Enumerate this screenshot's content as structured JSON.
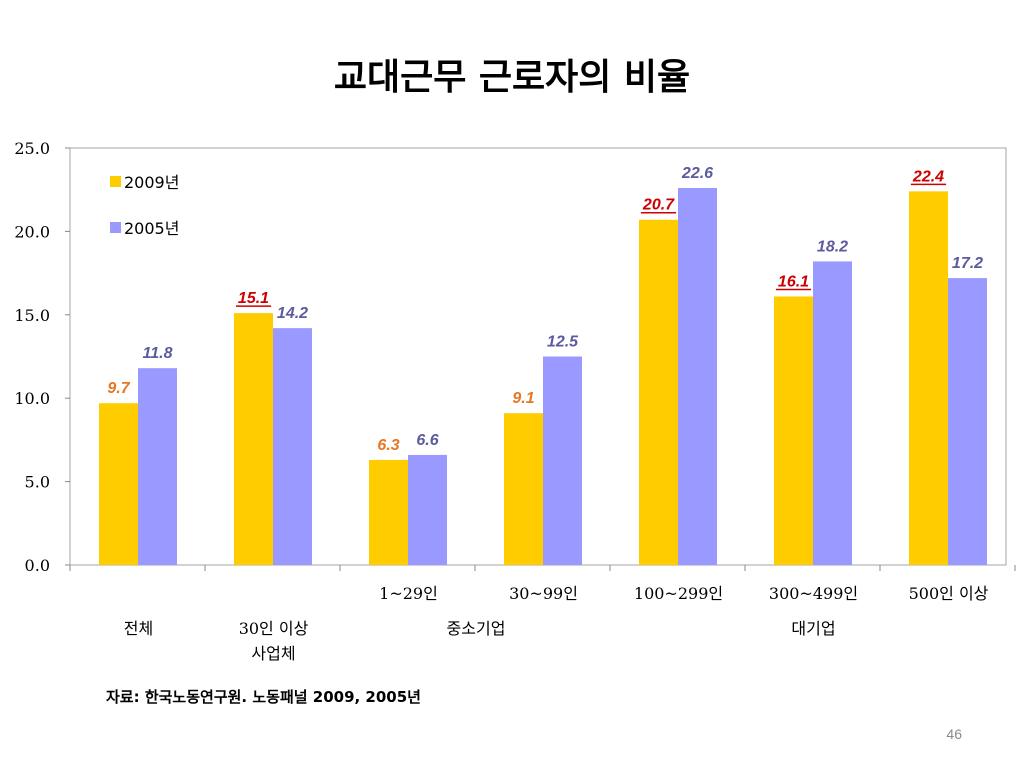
{
  "slide": {
    "title": "교대근무 근로자의 비율",
    "source": "자료: 한국노동연구원. 노동패널 2009, 2005년",
    "page_number": "46"
  },
  "chart_data": {
    "type": "bar",
    "title": "",
    "xlabel": "",
    "ylabel": "",
    "ylim": [
      0,
      25
    ],
    "yticks": [
      "0.0",
      "5.0",
      "10.0",
      "15.0",
      "20.0",
      "25.0"
    ],
    "grid": false,
    "legend_position": "top-left",
    "categories": [
      "",
      "",
      "1~29인",
      "30~99인",
      "100~299인",
      "300~499인",
      "500인 이상"
    ],
    "group_labels": [
      {
        "label": [
          "전체"
        ],
        "span": [
          0,
          0
        ]
      },
      {
        "label": [
          "30인 이상",
          "사업체"
        ],
        "span": [
          1,
          1
        ]
      },
      {
        "label": [
          "중소기업"
        ],
        "span": [
          2,
          3
        ]
      },
      {
        "label": [
          "대기업"
        ],
        "span": [
          4,
          6
        ]
      }
    ],
    "series": [
      {
        "name": "2009년",
        "color": "#FFCC00",
        "values": [
          9.7,
          15.1,
          6.3,
          9.1,
          20.7,
          16.1,
          22.4
        ],
        "labels": [
          "9.7",
          "15.1",
          "6.3",
          "9.1",
          "20.7",
          "16.1",
          "22.4"
        ],
        "label_colors": [
          "#E87722",
          "#CC0000",
          "#E87722",
          "#E87722",
          "#CC0000",
          "#CC0000",
          "#CC0000"
        ],
        "label_underline": [
          false,
          true,
          false,
          false,
          true,
          true,
          true
        ]
      },
      {
        "name": "2005년",
        "color": "#9999FF",
        "values": [
          11.8,
          14.2,
          6.6,
          12.5,
          22.6,
          18.2,
          17.2
        ],
        "labels": [
          "11.8",
          "14.2",
          "6.6",
          "12.5",
          "22.6",
          "18.2",
          "17.2"
        ],
        "label_colors": [
          "#5B5B9E",
          "#5B5B9E",
          "#5B5B9E",
          "#5B5B9E",
          "#5B5B9E",
          "#5B5B9E",
          "#5B5B9E"
        ],
        "label_underline": [
          false,
          false,
          false,
          false,
          false,
          false,
          false
        ]
      }
    ]
  }
}
